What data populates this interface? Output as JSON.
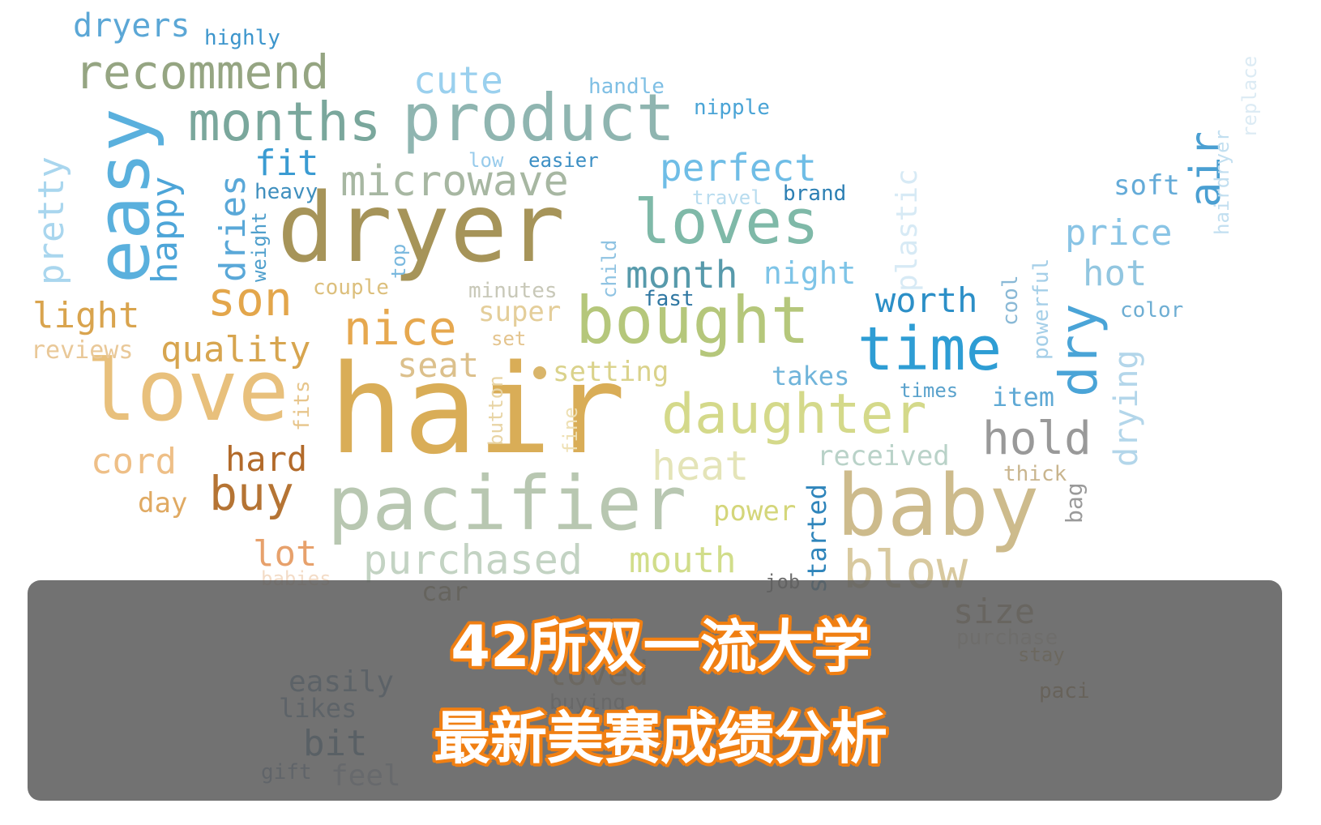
{
  "caption": {
    "line1": "42所双一流大学",
    "line2": "最新美赛成绩分析"
  },
  "colors": {
    "caption_text": "#ffffff",
    "caption_outline": "#f07f12",
    "banner": "#5f5f5f"
  },
  "words": [
    {
      "text": "hair",
      "color": "#d9ad57"
    },
    {
      "text": "dryer",
      "color": "#a69459"
    },
    {
      "text": "baby",
      "color": "#cdbb8c"
    },
    {
      "text": "pacifier",
      "color": "#b8c7b1"
    },
    {
      "text": "love",
      "color": "#e8c07c"
    },
    {
      "text": "product",
      "color": "#8fb5b0"
    },
    {
      "text": "bought",
      "color": "#b5c77b"
    },
    {
      "text": "daughter",
      "color": "#d4d98a"
    },
    {
      "text": "loves",
      "color": "#7fb9a8"
    },
    {
      "text": "months",
      "color": "#7aa79c"
    },
    {
      "text": "easy",
      "color": "#5ab0dd"
    },
    {
      "text": "time",
      "color": "#2e9dd4"
    },
    {
      "text": "recommend",
      "color": "#95a582"
    },
    {
      "text": "microwave",
      "color": "#a7b7a2"
    },
    {
      "text": "purchased",
      "color": "#c3d3c3"
    },
    {
      "text": "nice",
      "color": "#e6a84f"
    },
    {
      "text": "son",
      "color": "#e3a64b"
    },
    {
      "text": "buy",
      "color": "#b57434"
    },
    {
      "text": "blow",
      "color": "#d8c99f"
    },
    {
      "text": "heat",
      "color": "#e4e4b8"
    },
    {
      "text": "hold",
      "color": "#999999"
    },
    {
      "text": "dry",
      "color": "#4aa4d7"
    },
    {
      "text": "quality",
      "color": "#d7a54f"
    },
    {
      "text": "cute",
      "color": "#9ad0ee"
    },
    {
      "text": "perfect",
      "color": "#6fbde6"
    },
    {
      "text": "price",
      "color": "#89c4e5"
    },
    {
      "text": "month",
      "color": "#579aab"
    },
    {
      "text": "worth",
      "color": "#2c8fc7"
    },
    {
      "text": "hot",
      "color": "#92c6e0"
    },
    {
      "text": "air",
      "color": "#4a9fd2"
    },
    {
      "text": "size",
      "color": "#a8916c"
    },
    {
      "text": "mouth",
      "color": "#d1dd8a"
    },
    {
      "text": "fit",
      "color": "#3a9bd2"
    },
    {
      "text": "happy",
      "color": "#4da5d8"
    },
    {
      "text": "pretty",
      "color": "#a9d6ee"
    },
    {
      "text": "light",
      "color": "#d9a44e"
    },
    {
      "text": "reviews",
      "color": "#e9c898"
    },
    {
      "text": "cord",
      "color": "#eebf87"
    },
    {
      "text": "hard",
      "color": "#b26a2a"
    },
    {
      "text": "day",
      "color": "#e0aa63"
    },
    {
      "text": "lot",
      "color": "#e7a16c"
    },
    {
      "text": "seat",
      "color": "#dcc08c"
    },
    {
      "text": "super",
      "color": "#e4ce9a"
    },
    {
      "text": "setting",
      "color": "#dad28b"
    },
    {
      "text": "dryers",
      "color": "#5ba7d6"
    },
    {
      "text": "highly",
      "color": "#3c95cc"
    },
    {
      "text": "handle",
      "color": "#7fbfe4"
    },
    {
      "text": "nipple",
      "color": "#4aa4d6"
    },
    {
      "text": "low",
      "color": "#98cbeb"
    },
    {
      "text": "easier",
      "color": "#3c8fc4"
    },
    {
      "text": "travel",
      "color": "#b8dcef"
    },
    {
      "text": "brand",
      "color": "#2c7fb3"
    },
    {
      "text": "heavy",
      "color": "#3f8fbe"
    },
    {
      "text": "couple",
      "color": "#dcbf7c"
    },
    {
      "text": "minutes",
      "color": "#c8c8b8"
    },
    {
      "text": "fast",
      "color": "#2f77a2"
    },
    {
      "text": "night",
      "color": "#7ec4e7"
    },
    {
      "text": "set",
      "color": "#e4c48e"
    },
    {
      "text": "takes",
      "color": "#70b4da"
    },
    {
      "text": "times",
      "color": "#5aa2cc"
    },
    {
      "text": "item",
      "color": "#5fa9d5"
    },
    {
      "text": "color",
      "color": "#6eaed3"
    },
    {
      "text": "soft",
      "color": "#64abd8"
    },
    {
      "text": "received",
      "color": "#b9d2c8"
    },
    {
      "text": "thick",
      "color": "#c9b58e"
    },
    {
      "text": "power",
      "color": "#d4d67a"
    },
    {
      "text": "job",
      "color": "#707070"
    },
    {
      "text": "car",
      "color": "#9c8a5a"
    },
    {
      "text": "purchase",
      "color": "#d9d2c2"
    },
    {
      "text": "stay",
      "color": "#c9a866"
    },
    {
      "text": "paci",
      "color": "#a07838"
    },
    {
      "text": "babies",
      "color": "#f3dcc7"
    },
    {
      "text": "easily",
      "color": "#4b7fa6"
    },
    {
      "text": "likes",
      "color": "#5784a8"
    },
    {
      "text": "bit",
      "color": "#316a94"
    },
    {
      "text": "gift",
      "color": "#6a8fb0"
    },
    {
      "text": "feel",
      "color": "#a3b4c8"
    },
    {
      "text": "loved",
      "color": "#c9ac74"
    },
    {
      "text": "buying",
      "color": "#a9a9a9"
    },
    {
      "text": "plastic",
      "color": "#d7eaf5"
    },
    {
      "text": "dries",
      "color": "#5aa8d8"
    },
    {
      "text": "weight",
      "color": "#4f9fcc"
    },
    {
      "text": "top",
      "color": "#79b8de"
    },
    {
      "text": "child",
      "color": "#8fc3e2"
    },
    {
      "text": "fits",
      "color": "#e7c58b"
    },
    {
      "text": "button",
      "color": "#e8d4a4"
    },
    {
      "text": "fine",
      "color": "#eee0b4"
    },
    {
      "text": "started",
      "color": "#2f85bb"
    },
    {
      "text": "cool",
      "color": "#8ab9d6"
    },
    {
      "text": "powerful",
      "color": "#a5cfe8"
    },
    {
      "text": "drying",
      "color": "#b3d6ea"
    },
    {
      "text": "bag",
      "color": "#9a9a9a"
    },
    {
      "text": "hairdryer",
      "color": "#c2dff0"
    },
    {
      "text": "replace",
      "color": "#dcebf4"
    }
  ]
}
